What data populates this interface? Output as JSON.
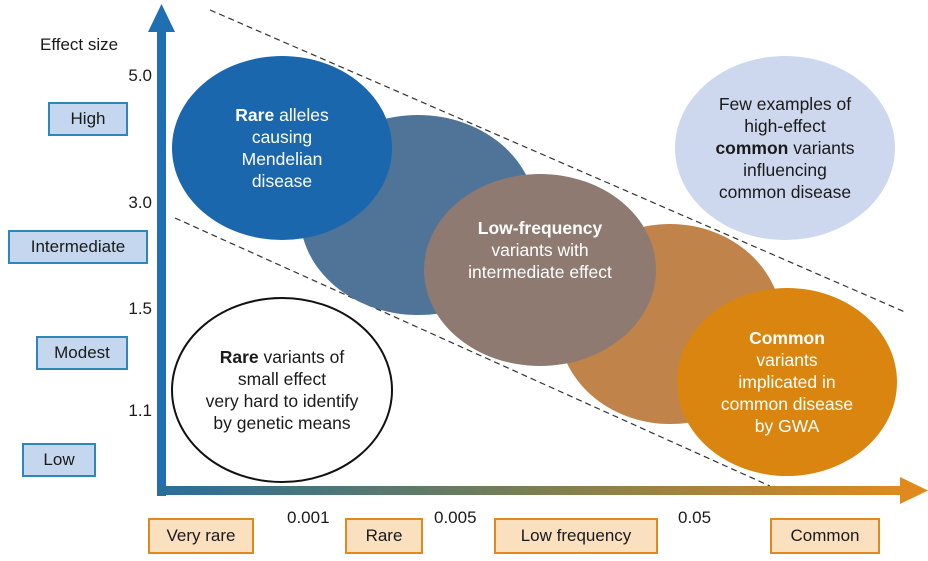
{
  "y_axis": {
    "title": "Effect size",
    "ticks": [
      "5.0",
      "3.0",
      "1.5",
      "1.1"
    ],
    "categories": [
      "High",
      "Intermediate",
      "Modest",
      "Low"
    ]
  },
  "x_axis": {
    "ticks": [
      "0.001",
      "0.005",
      "0.05"
    ],
    "categories": [
      "Very rare",
      "Rare",
      "Low frequency",
      "Common"
    ]
  },
  "regions": {
    "rare_mendelian": {
      "bold": "Rare",
      "line1_rest": " alleles",
      "line2": "causing",
      "line3": "Mendelian",
      "line4": "disease"
    },
    "low_frequency": {
      "bold": "Low-frequency",
      "line2": "variants with",
      "line3": "intermediate effect"
    },
    "common_gwa": {
      "bold": "Common",
      "line2": "variants",
      "line3": "implicated in",
      "line4": "common disease",
      "line5": "by GWA"
    },
    "few_examples": {
      "line1": "Few examples of",
      "line2": "high-effect",
      "bold": "common",
      "line3_rest": " variants",
      "line4": "influencing",
      "line5": "common disease"
    },
    "rare_small": {
      "bold": "Rare",
      "line1_rest": " variants of",
      "line2": "small effect",
      "line3": "very hard to identify",
      "line4": "by genetic means"
    }
  },
  "colors": {
    "y_axis": "#1f6fb2",
    "x_axis_start": "#2a6d9a",
    "x_axis_end": "#e08a1e",
    "ellipse_rare": "#1a67ad",
    "ellipse_rare_mid": "#4f7498",
    "ellipse_low_freq": "#8f7a72",
    "ellipse_common_mid": "#c08349",
    "ellipse_common": "#d9850f",
    "ellipse_few": "#cdd8ee"
  }
}
